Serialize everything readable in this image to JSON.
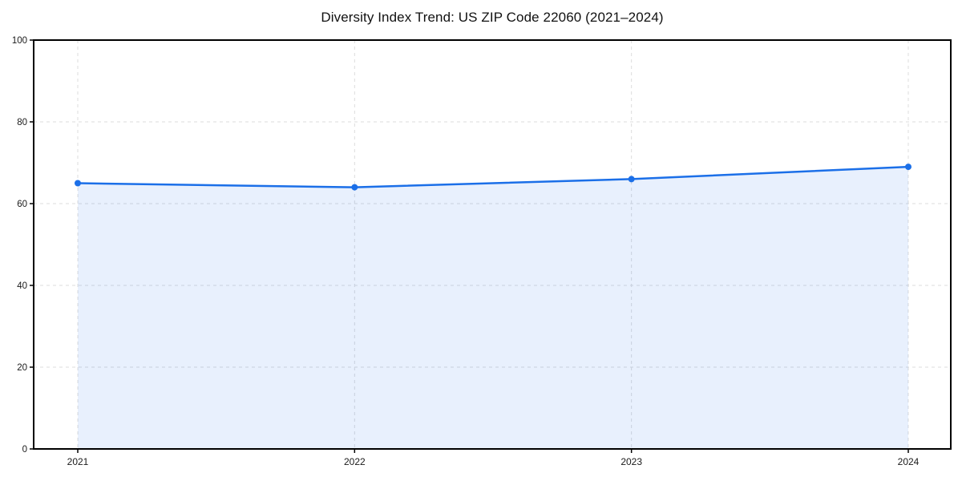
{
  "chart_data": {
    "type": "line",
    "title": "Diversity Index Trend: US ZIP Code 22060 (2021–2024)",
    "categories": [
      "2021",
      "2022",
      "2023",
      "2024"
    ],
    "values": [
      65,
      64,
      66,
      69
    ],
    "xlabel": "",
    "ylabel": "",
    "ylim": [
      0,
      100
    ],
    "yticks": [
      0,
      20,
      40,
      60,
      80,
      100
    ],
    "grid": true,
    "grid_style": "dashed",
    "legend": false,
    "marker": "circle",
    "area_fill": true,
    "colors": {
      "line": "#1b6fe8",
      "marker": "#1b6fe8",
      "fill": "rgba(27,111,232,0.10)",
      "grid": "#dcdcdc",
      "axis": "#000000",
      "tick_text": "#1a1a1a",
      "background": "#ffffff"
    }
  }
}
